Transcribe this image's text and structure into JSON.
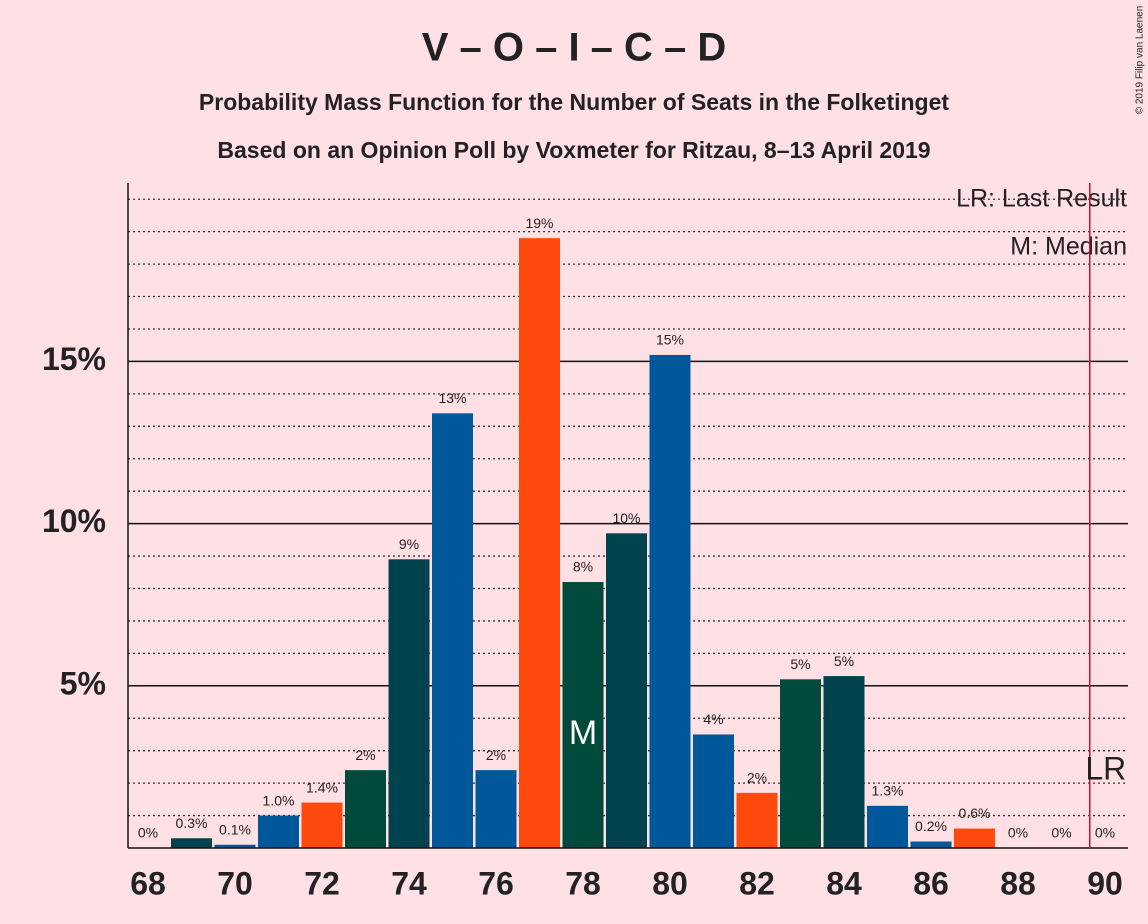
{
  "chart_data": {
    "type": "bar",
    "title": "V – O – I – C – D",
    "subtitle": "Probability Mass Function for the Number of Seats in the Folketinget",
    "subtitle2": "Based on an Opinion Poll by Voxmeter for Ritzau, 8–13 April 2019",
    "copyright": "© 2019 Filip van Laenen",
    "legend": [
      "LR: Last Result",
      "M: Median"
    ],
    "categories": [
      68,
      69,
      70,
      71,
      72,
      73,
      74,
      75,
      76,
      77,
      78,
      79,
      80,
      81,
      82,
      83,
      84,
      85,
      86,
      87,
      88,
      89,
      90
    ],
    "values": [
      0,
      0.3,
      0.1,
      1.0,
      1.4,
      2.4,
      8.9,
      13.4,
      2.4,
      18.8,
      8.2,
      9.7,
      15.2,
      3.5,
      1.7,
      5.2,
      5.3,
      1.3,
      0.2,
      0.6,
      0,
      0,
      0
    ],
    "value_labels": [
      "0%",
      "0.3%",
      "0.1%",
      "1.0%",
      "1.4%",
      "2%",
      "9%",
      "13%",
      "2%",
      "19%",
      "8%",
      "10%",
      "15%",
      "4%",
      "2%",
      "5%",
      "5%",
      "1.3%",
      "0.2%",
      "0.6%",
      "0%",
      "0%",
      "0%"
    ],
    "colors": [
      "#004a3b",
      "#00434f",
      "#00589a",
      "#00589a",
      "#ff4a0d",
      "#004a3b",
      "#00434f",
      "#00589a",
      "#00589a",
      "#ff4a0d",
      "#004a3b",
      "#00434f",
      "#00589a",
      "#00589a",
      "#ff4a0d",
      "#004a3b",
      "#00434f",
      "#00589a",
      "#00589a",
      "#ff4a0d",
      "#004a3b",
      "#00434f",
      "#00589a"
    ],
    "xticks": [
      68,
      70,
      72,
      74,
      76,
      78,
      80,
      82,
      84,
      86,
      88,
      90
    ],
    "ylim": [
      0,
      20.5
    ],
    "yticks": [
      {
        "value": 5,
        "label": "5%"
      },
      {
        "value": 10,
        "label": "10%"
      },
      {
        "value": 15,
        "label": "15%"
      }
    ],
    "minor_yticks": [
      1,
      2,
      3,
      4,
      6,
      7,
      8,
      9,
      11,
      12,
      13,
      14,
      16,
      17,
      18,
      19,
      20
    ],
    "median": 78,
    "median_label": "M",
    "last_result": 89.65,
    "last_result_label": "LR",
    "lr_color": "#c8102e"
  }
}
